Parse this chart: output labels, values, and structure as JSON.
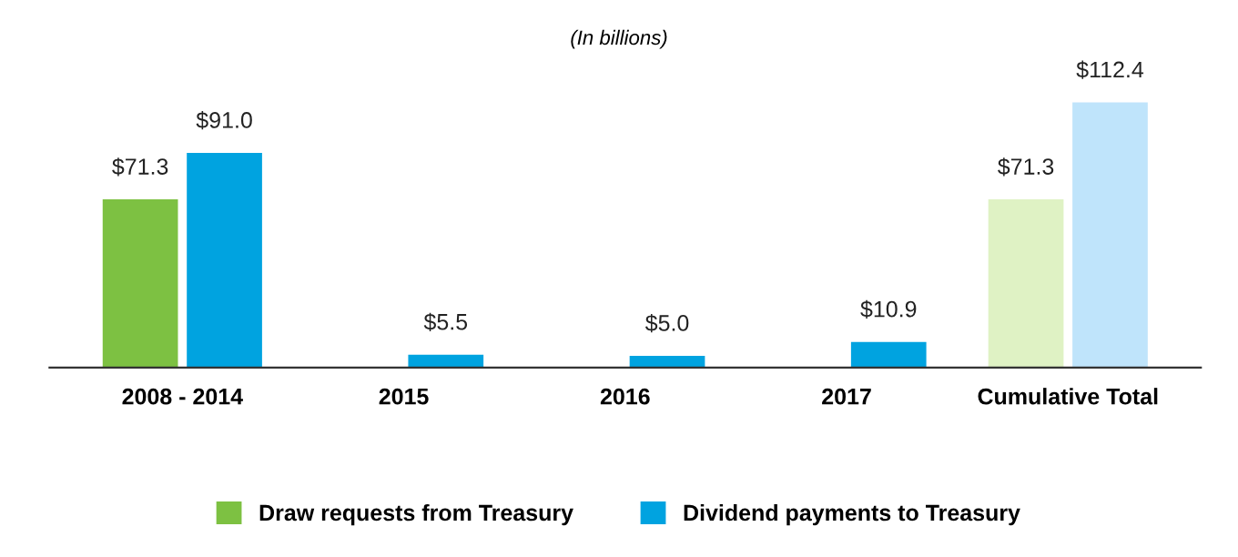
{
  "chart_data": {
    "type": "bar",
    "title": "(In billions)",
    "categories": [
      "2008 - 2014",
      "2015",
      "2016",
      "2017",
      "Cumulative Total"
    ],
    "series": [
      {
        "name": "Draw requests from Treasury",
        "color": "#7dc142",
        "colors": [
          "#7dc142",
          null,
          null,
          null,
          "#dff2c4"
        ],
        "values": [
          71.3,
          null,
          null,
          null,
          71.3
        ],
        "value_labels": [
          "$71.3",
          null,
          null,
          null,
          "$71.3"
        ]
      },
      {
        "name": "Dividend payments to Treasury",
        "color": "#00a3e0",
        "colors": [
          "#00a3e0",
          "#00a3e0",
          "#00a3e0",
          "#00a3e0",
          "#bfe4fb"
        ],
        "values": [
          91.0,
          5.5,
          5.0,
          10.9,
          112.4
        ],
        "value_labels": [
          "$91.0",
          "$5.5",
          "$5.0",
          "$10.9",
          "$112.4"
        ]
      }
    ],
    "legend": "bottom",
    "grid": false
  }
}
